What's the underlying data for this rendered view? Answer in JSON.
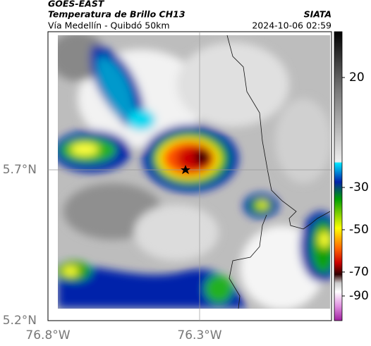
{
  "header": {
    "source": "GOES-EAST",
    "title": "Temperatura de Brillo CH13",
    "subtitle": "Vía Medellín - Quibdó 50km",
    "brand": "SIATA",
    "timestamp": "2024-10-06 02:59"
  },
  "map": {
    "lat_labels": [
      "5.7°N",
      "5.2°N"
    ],
    "lon_labels": [
      "76.8°W",
      "76.3°W"
    ]
  },
  "colorbar": {
    "labels": [
      "20",
      "-30",
      "-50",
      "-70",
      "-90"
    ]
  }
}
